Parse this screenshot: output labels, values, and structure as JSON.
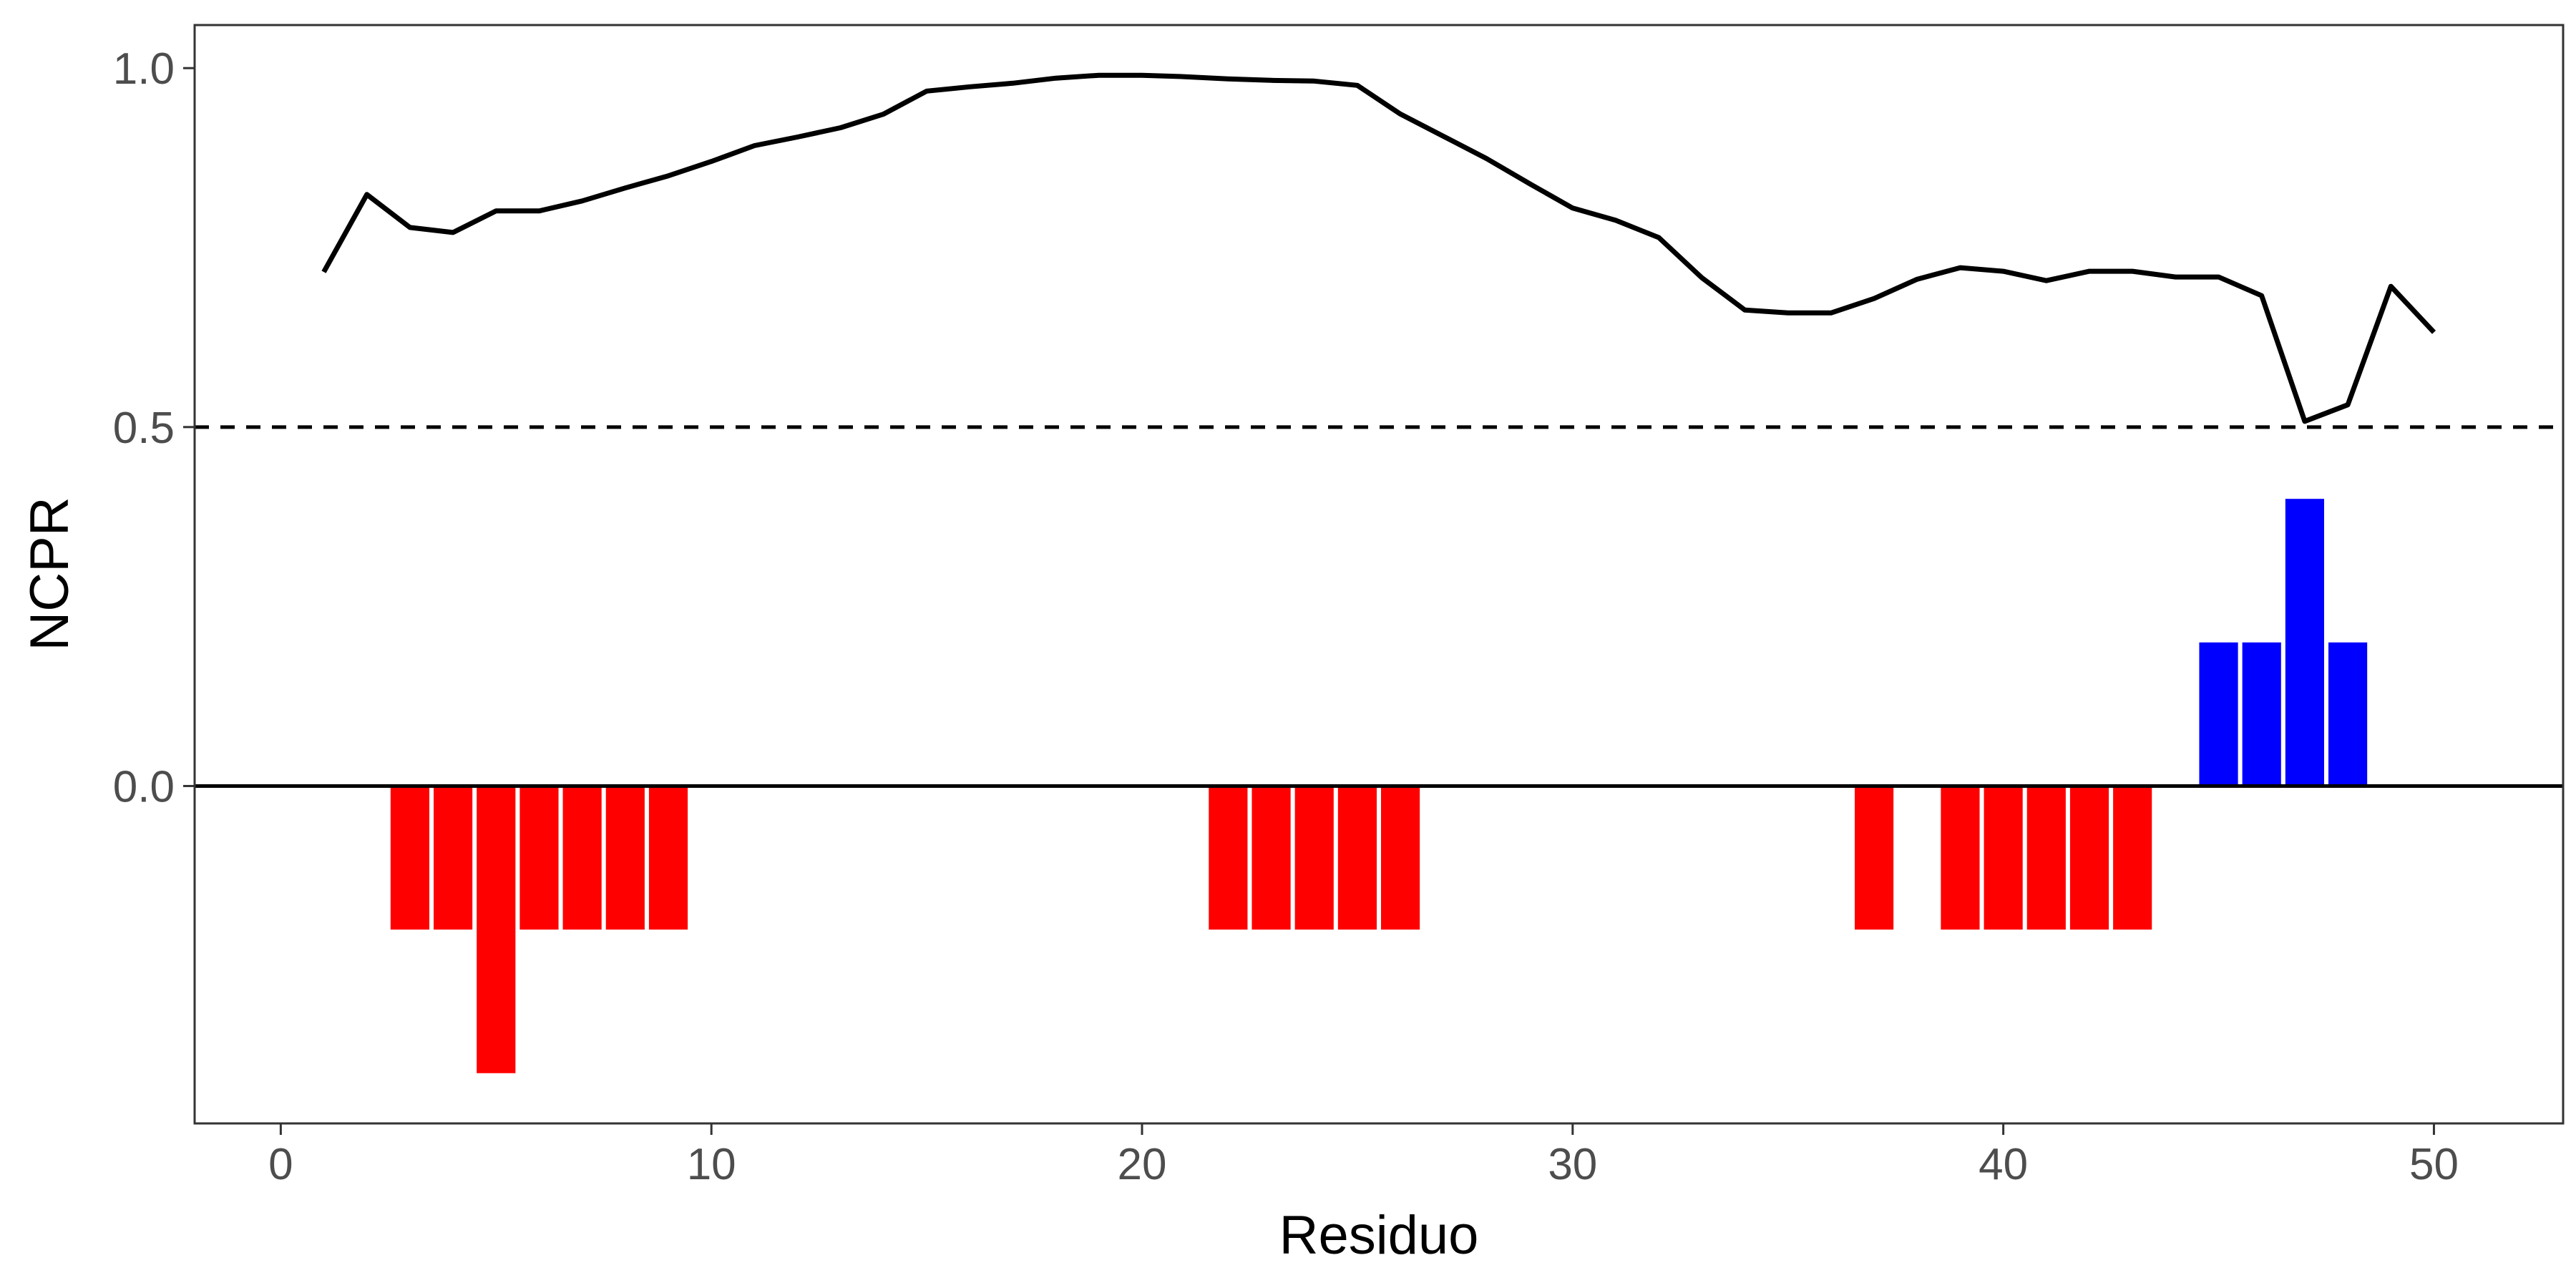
{
  "chart_data": {
    "type": "bar",
    "xlabel": "Residuo",
    "ylabel": "NCPR",
    "xlim": [
      -2,
      53
    ],
    "ylim": [
      -0.47,
      1.06
    ],
    "x_ticks": [
      0,
      10,
      20,
      30,
      40,
      50
    ],
    "y_ticks": [
      0.0,
      0.5,
      1.0
    ],
    "x_tick_labels": [
      "0",
      "10",
      "20",
      "30",
      "40",
      "50"
    ],
    "y_tick_labels": [
      "0.0",
      "0.5",
      "1.0"
    ],
    "grid": false,
    "reference_lines": [
      {
        "y": 0.5,
        "style": "dashed"
      },
      {
        "y": 0.0,
        "style": "solid"
      }
    ],
    "bars": {
      "x": [
        3,
        4,
        5,
        6,
        7,
        8,
        9,
        22,
        23,
        24,
        25,
        26,
        37,
        39,
        40,
        41,
        42,
        43,
        45,
        46,
        47,
        48
      ],
      "values": [
        -0.2,
        -0.2,
        -0.4,
        -0.2,
        -0.2,
        -0.2,
        -0.2,
        -0.2,
        -0.2,
        -0.2,
        -0.2,
        -0.2,
        -0.2,
        -0.2,
        -0.2,
        -0.2,
        -0.2,
        -0.2,
        0.2,
        0.2,
        0.4,
        0.2
      ],
      "negative_color": "#ff0000",
      "positive_color": "#0000ff"
    },
    "line": {
      "color": "#000000",
      "x": [
        1,
        2,
        3,
        4,
        5,
        6,
        7,
        8,
        9,
        10,
        11,
        12,
        13,
        14,
        15,
        16,
        17,
        18,
        19,
        20,
        21,
        22,
        23,
        24,
        25,
        26,
        27,
        28,
        29,
        30,
        31,
        32,
        33,
        34,
        35,
        36,
        37,
        38,
        39,
        40,
        41,
        42,
        43,
        44,
        45,
        46,
        47,
        48,
        49,
        50
      ],
      "y": [
        0.716,
        0.824,
        0.778,
        0.771,
        0.801,
        0.801,
        0.815,
        0.833,
        0.85,
        0.87,
        0.892,
        0.904,
        0.917,
        0.936,
        0.968,
        0.974,
        0.979,
        0.986,
        0.99,
        0.99,
        0.988,
        0.985,
        0.983,
        0.982,
        0.976,
        0.936,
        0.905,
        0.874,
        0.839,
        0.805,
        0.788,
        0.764,
        0.708,
        0.663,
        0.659,
        0.659,
        0.679,
        0.706,
        0.722,
        0.717,
        0.704,
        0.717,
        0.717,
        0.709,
        0.709,
        0.683,
        0.508,
        0.531,
        0.696,
        0.632
      ]
    }
  }
}
